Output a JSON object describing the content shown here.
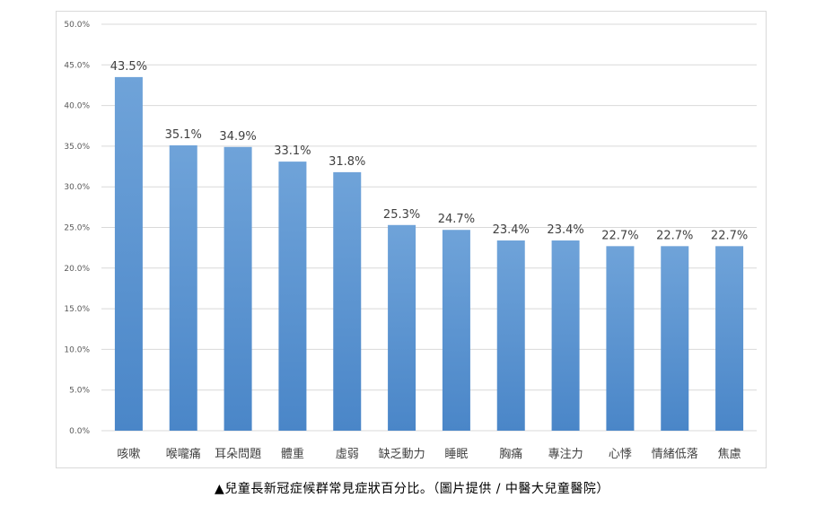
{
  "caption": "▲兒童長新冠症候群常見症狀百分比。（圖片提供 / 中醫大兒童醫院）",
  "chart_data": {
    "type": "bar",
    "categories": [
      "咳嗽",
      "喉嚨痛",
      "耳朵問題",
      "體重",
      "虛弱",
      "缺乏動力",
      "睡眠",
      "胸痛",
      "專注力",
      "心悸",
      "情緒低落",
      "焦慮"
    ],
    "values": [
      43.5,
      35.1,
      34.9,
      33.1,
      31.8,
      25.3,
      24.7,
      23.4,
      23.4,
      22.7,
      22.7,
      22.7
    ],
    "data_labels": [
      "43.5%",
      "35.1%",
      "34.9%",
      "33.1%",
      "31.8%",
      "25.3%",
      "24.7%",
      "23.4%",
      "23.4%",
      "22.7%",
      "22.7%",
      "22.7%"
    ],
    "y_ticks": [
      "0.0%",
      "5.0%",
      "10.0%",
      "15.0%",
      "20.0%",
      "25.0%",
      "30.0%",
      "35.0%",
      "40.0%",
      "45.0%",
      "50.0%"
    ],
    "ylim": [
      0,
      50
    ],
    "grid": true,
    "bar_color_top": "#6fa3d9",
    "bar_color_bottom": "#4a86c8"
  }
}
